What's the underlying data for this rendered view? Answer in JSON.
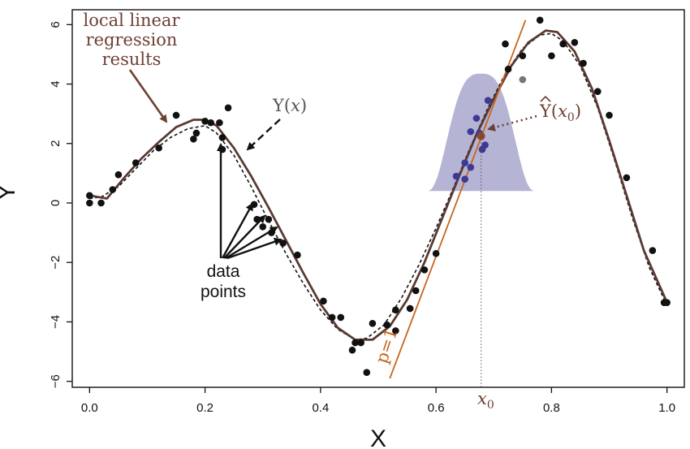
{
  "chart_data": {
    "type": "scatter",
    "xlabel": "X",
    "ylabel": "Y",
    "xlim": [
      -0.03,
      1.03
    ],
    "ylim": [
      -6.2,
      6.5
    ],
    "xticks": [
      "0.0",
      "0.2",
      "0.4",
      "0.6",
      "0.8",
      "1.0"
    ],
    "yticks": [
      "−6",
      "−4",
      "−2",
      "0",
      "2",
      "4",
      "6"
    ],
    "grid": false,
    "points": [
      {
        "x": 0.0,
        "y": 0.25
      },
      {
        "x": 0.0,
        "y": 0.0
      },
      {
        "x": 0.02,
        "y": 0.0
      },
      {
        "x": 0.04,
        "y": 0.45
      },
      {
        "x": 0.05,
        "y": 0.95
      },
      {
        "x": 0.08,
        "y": 1.35
      },
      {
        "x": 0.12,
        "y": 1.85
      },
      {
        "x": 0.15,
        "y": 2.95
      },
      {
        "x": 0.18,
        "y": 2.15
      },
      {
        "x": 0.185,
        "y": 2.35
      },
      {
        "x": 0.2,
        "y": 2.75
      },
      {
        "x": 0.21,
        "y": 2.7
      },
      {
        "x": 0.225,
        "y": 2.7
      },
      {
        "x": 0.23,
        "y": 2.2
      },
      {
        "x": 0.23,
        "y": 1.8
      },
      {
        "x": 0.24,
        "y": 3.2
      },
      {
        "x": 0.285,
        "y": -0.05
      },
      {
        "x": 0.29,
        "y": -0.55
      },
      {
        "x": 0.3,
        "y": -0.8
      },
      {
        "x": 0.31,
        "y": -0.55
      },
      {
        "x": 0.315,
        "y": -1.0
      },
      {
        "x": 0.335,
        "y": -1.35
      },
      {
        "x": 0.36,
        "y": -1.75
      },
      {
        "x": 0.405,
        "y": -3.3
      },
      {
        "x": 0.42,
        "y": -3.85
      },
      {
        "x": 0.435,
        "y": -3.85
      },
      {
        "x": 0.455,
        "y": -4.95
      },
      {
        "x": 0.46,
        "y": -4.7
      },
      {
        "x": 0.47,
        "y": -4.7
      },
      {
        "x": 0.48,
        "y": -5.7
      },
      {
        "x": 0.49,
        "y": -4.05
      },
      {
        "x": 0.515,
        "y": -4.1
      },
      {
        "x": 0.53,
        "y": -3.6
      },
      {
        "x": 0.53,
        "y": -4.3
      },
      {
        "x": 0.555,
        "y": -3.55
      },
      {
        "x": 0.565,
        "y": -2.95
      },
      {
        "x": 0.58,
        "y": -2.25
      },
      {
        "x": 0.6,
        "y": -1.7
      },
      {
        "x": 0.72,
        "y": 5.35
      },
      {
        "x": 0.725,
        "y": 4.5
      },
      {
        "x": 0.75,
        "y": 4.95
      },
      {
        "x": 0.78,
        "y": 6.15
      },
      {
        "x": 0.8,
        "y": 4.95
      },
      {
        "x": 0.82,
        "y": 5.35
      },
      {
        "x": 0.84,
        "y": 5.4
      },
      {
        "x": 0.855,
        "y": 4.7
      },
      {
        "x": 0.88,
        "y": 3.75
      },
      {
        "x": 0.9,
        "y": 2.95
      },
      {
        "x": 0.93,
        "y": 0.85
      },
      {
        "x": 0.975,
        "y": -1.6
      },
      {
        "x": 0.995,
        "y": -3.35
      },
      {
        "x": 1.0,
        "y": -3.35
      }
    ],
    "local_points": [
      {
        "x": 0.635,
        "y": 0.9
      },
      {
        "x": 0.65,
        "y": 1.35
      },
      {
        "x": 0.65,
        "y": 0.8
      },
      {
        "x": 0.66,
        "y": 1.2
      },
      {
        "x": 0.66,
        "y": 2.4
      },
      {
        "x": 0.67,
        "y": 2.85
      },
      {
        "x": 0.675,
        "y": 2.35
      },
      {
        "x": 0.68,
        "y": 1.8
      },
      {
        "x": 0.685,
        "y": 1.95
      },
      {
        "x": 0.69,
        "y": 3.45
      }
    ],
    "outlier_point": {
      "x": 0.75,
      "y": 4.15
    },
    "true_curve": [
      [
        0.0,
        0.15
      ],
      [
        0.02,
        0.2
      ],
      [
        0.05,
        0.55
      ],
      [
        0.08,
        1.15
      ],
      [
        0.11,
        1.75
      ],
      [
        0.14,
        2.2
      ],
      [
        0.17,
        2.5
      ],
      [
        0.2,
        2.6
      ],
      [
        0.22,
        2.35
      ],
      [
        0.25,
        1.6
      ],
      [
        0.28,
        0.55
      ],
      [
        0.31,
        -0.6
      ],
      [
        0.34,
        -1.7
      ],
      [
        0.37,
        -2.7
      ],
      [
        0.4,
        -3.6
      ],
      [
        0.43,
        -4.25
      ],
      [
        0.46,
        -4.6
      ],
      [
        0.48,
        -4.55
      ],
      [
        0.51,
        -4.1
      ],
      [
        0.54,
        -3.2
      ],
      [
        0.57,
        -2.1
      ],
      [
        0.6,
        -0.85
      ],
      [
        0.63,
        0.5
      ],
      [
        0.66,
        1.9
      ],
      [
        0.69,
        3.2
      ],
      [
        0.72,
        4.35
      ],
      [
        0.75,
        5.2
      ],
      [
        0.78,
        5.65
      ],
      [
        0.8,
        5.7
      ],
      [
        0.82,
        5.45
      ],
      [
        0.85,
        4.6
      ],
      [
        0.88,
        3.2
      ],
      [
        0.91,
        1.4
      ],
      [
        0.94,
        -0.5
      ],
      [
        0.97,
        -2.2
      ],
      [
        1.0,
        -3.45
      ]
    ],
    "llr_curve": [
      [
        0.0,
        0.25
      ],
      [
        0.03,
        0.15
      ],
      [
        0.06,
        0.85
      ],
      [
        0.09,
        1.5
      ],
      [
        0.12,
        2.05
      ],
      [
        0.15,
        2.55
      ],
      [
        0.18,
        2.8
      ],
      [
        0.2,
        2.8
      ],
      [
        0.22,
        2.6
      ],
      [
        0.25,
        1.85
      ],
      [
        0.28,
        0.9
      ],
      [
        0.31,
        -0.15
      ],
      [
        0.34,
        -1.25
      ],
      [
        0.37,
        -2.35
      ],
      [
        0.4,
        -3.4
      ],
      [
        0.43,
        -4.2
      ],
      [
        0.46,
        -4.6
      ],
      [
        0.49,
        -4.6
      ],
      [
        0.52,
        -4.15
      ],
      [
        0.55,
        -3.25
      ],
      [
        0.58,
        -2.0
      ],
      [
        0.61,
        -0.55
      ],
      [
        0.64,
        0.9
      ],
      [
        0.67,
        2.3
      ],
      [
        0.7,
        3.5
      ],
      [
        0.73,
        4.6
      ],
      [
        0.76,
        5.4
      ],
      [
        0.79,
        5.8
      ],
      [
        0.81,
        5.75
      ],
      [
        0.84,
        5.1
      ],
      [
        0.87,
        3.85
      ],
      [
        0.9,
        2.1
      ],
      [
        0.93,
        0.25
      ],
      [
        0.96,
        -1.6
      ],
      [
        1.0,
        -3.35
      ]
    ],
    "x0": 0.678,
    "y_hat_x0": 2.25,
    "local_line": [
      [
        0.52,
        -5.9
      ],
      [
        0.755,
        6.15
      ]
    ],
    "kernel": {
      "center": 0.678,
      "halfwidth": 0.095,
      "base": 0.4,
      "peak": 4.35
    },
    "annotations": {
      "llr_label_lines": [
        "local linear",
        "regression",
        "results"
      ],
      "true_label": "Y",
      "true_label_arg": "x",
      "yhat_label": "Y",
      "yhat_label_arg": "x",
      "yhat_label_sub": "0",
      "x0_label": "x",
      "x0_label_sub": "0",
      "p_label": "p=1",
      "data_points_lines": [
        "data",
        "points"
      ]
    },
    "colors": {
      "llr": "#5a3a33",
      "true": "#111111",
      "line": "#c9651c",
      "kernel": "#9c9bc6",
      "local_points": "#3c3a95",
      "points": "#111111",
      "outlier": "#777777",
      "label_brown": "#6e3f33",
      "label_gray": "#555555"
    }
  }
}
